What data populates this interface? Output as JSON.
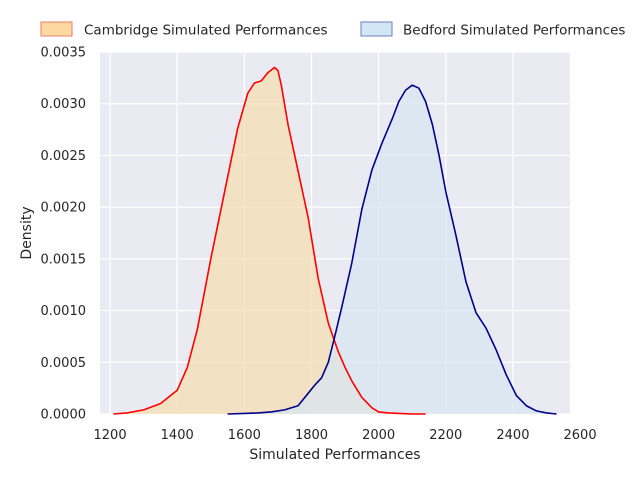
{
  "chart_data": {
    "type": "area",
    "title": "",
    "xlabel": "Simulated Performances",
    "ylabel": "Density",
    "xlim": [
      1170,
      2570
    ],
    "ylim": [
      0,
      0.0035
    ],
    "xticks": [
      1200,
      1400,
      1600,
      1800,
      2000,
      2200,
      2400,
      2600
    ],
    "xtick_labels": [
      "1200",
      "1400",
      "1600",
      "1800",
      "2000",
      "2200",
      "2400",
      "2600"
    ],
    "yticks": [
      0,
      0.0005,
      0.001,
      0.0015,
      0.002,
      0.0025,
      0.003,
      0.0035
    ],
    "ytick_labels": [
      "0.0000",
      "0.0005",
      "0.0010",
      "0.0015",
      "0.0020",
      "0.0025",
      "0.0030",
      "0.0035"
    ],
    "grid": true,
    "legend_position": "top",
    "series": [
      {
        "name": "Cambridge Simulated Performances",
        "line_color": "#ff0000",
        "fill_color": "#f5deb3",
        "legend_fill": "#fdd8a0",
        "legend_edge": "#ee7b6a",
        "x": [
          1210,
          1250,
          1300,
          1350,
          1400,
          1430,
          1460,
          1500,
          1540,
          1580,
          1610,
          1630,
          1650,
          1670,
          1690,
          1700,
          1710,
          1730,
          1760,
          1790,
          1820,
          1850,
          1880,
          1900,
          1920,
          1950,
          1980,
          2000,
          2030,
          2060,
          2100,
          2140
        ],
        "y": [
          0.0,
          1e-05,
          4e-05,
          0.0001,
          0.00023,
          0.00045,
          0.00082,
          0.0015,
          0.00213,
          0.00276,
          0.0031,
          0.0032,
          0.00322,
          0.0033,
          0.00335,
          0.00332,
          0.00318,
          0.0028,
          0.00235,
          0.0019,
          0.00131,
          0.00088,
          0.0006,
          0.00045,
          0.00032,
          0.00016,
          6e-05,
          2e-05,
          1e-05,
          5e-06,
          0.0,
          0.0
        ]
      },
      {
        "name": "Bedford Simulated Performances",
        "line_color": "#00008b",
        "fill_color": "#d6e6f2",
        "legend_fill": "#d3e6f5",
        "legend_edge": "#6b7fc0",
        "x": [
          1550,
          1600,
          1640,
          1680,
          1720,
          1760,
          1790,
          1810,
          1830,
          1850,
          1870,
          1890,
          1920,
          1950,
          1980,
          2010,
          2040,
          2060,
          2080,
          2100,
          2120,
          2140,
          2160,
          2180,
          2200,
          2230,
          2260,
          2290,
          2320,
          2350,
          2380,
          2410,
          2440,
          2470,
          2500,
          2530
        ],
        "y": [
          0.0,
          5e-06,
          1e-05,
          2e-05,
          4e-05,
          8e-05,
          0.0002,
          0.00028,
          0.00035,
          0.0005,
          0.00076,
          0.00103,
          0.00146,
          0.00198,
          0.00236,
          0.00262,
          0.00285,
          0.00302,
          0.00313,
          0.00318,
          0.00315,
          0.00302,
          0.0028,
          0.0025,
          0.00215,
          0.00173,
          0.00128,
          0.00098,
          0.00083,
          0.00062,
          0.00038,
          0.00018,
          8e-05,
          3e-05,
          1e-05,
          0.0
        ]
      }
    ]
  }
}
